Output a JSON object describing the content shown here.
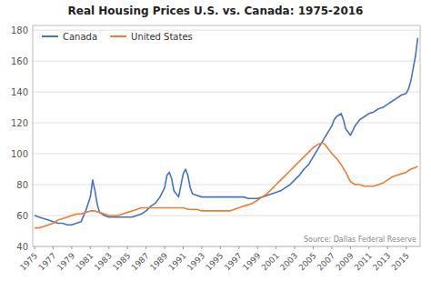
{
  "chart_data": {
    "type": "line",
    "title": "Real Housing Prices U.S. vs. Canada: 1975-2016",
    "annotations": [
      "Source: Dallas Federal Reserve"
    ],
    "xlim": [
      1974.8,
      2016.5
    ],
    "xticks": [
      1975,
      1977,
      1979,
      1981,
      1983,
      1985,
      1987,
      1989,
      1991,
      1993,
      1995,
      1997,
      1999,
      2001,
      2003,
      2005,
      2007,
      2009,
      2011,
      2013,
      2015
    ],
    "ylim": [
      40,
      183
    ],
    "yticks": [
      40,
      60,
      80,
      100,
      120,
      140,
      160,
      180
    ],
    "grid": true,
    "legend": "upper left",
    "series": [
      {
        "name": "Canada",
        "color": "#4472C4",
        "x": [
          1975,
          1975.5,
          1976,
          1976.5,
          1977,
          1977.5,
          1978,
          1978.5,
          1979,
          1979.5,
          1980,
          1980.5,
          1981,
          1981.25,
          1981.5,
          1981.75,
          1982,
          1982.5,
          1983,
          1983.5,
          1984,
          1984.5,
          1985,
          1985.5,
          1986,
          1986.5,
          1987,
          1987.5,
          1988,
          1988.5,
          1989,
          1989.25,
          1989.5,
          1989.75,
          1990,
          1990.5,
          1991,
          1991.25,
          1991.5,
          1991.75,
          1992,
          1992.5,
          1993,
          1993.5,
          1994,
          1994.5,
          1995,
          1995.5,
          1996,
          1996.5,
          1997,
          1997.5,
          1998,
          1998.5,
          1999,
          1999.5,
          2000,
          2000.5,
          2001,
          2001.5,
          2002,
          2002.5,
          2003,
          2003.5,
          2004,
          2004.5,
          2005,
          2005.5,
          2006,
          2006.5,
          2007,
          2007.25,
          2007.5,
          2008,
          2008.25,
          2008.5,
          2009,
          2009.25,
          2009.5,
          2009.75,
          2010,
          2010.5,
          2011,
          2011.5,
          2012,
          2012.5,
          2013,
          2013.5,
          2014,
          2014.5,
          2015,
          2015.25,
          2015.5,
          2015.75,
          2016,
          2016.25
        ],
        "values": [
          60,
          59,
          58,
          57,
          56,
          55,
          55,
          54,
          54,
          55,
          56,
          63,
          72,
          83,
          76,
          67,
          62,
          60,
          59,
          59,
          59,
          59,
          59,
          59,
          60,
          61,
          63,
          66,
          68,
          72,
          78,
          86,
          88,
          84,
          76,
          72,
          87,
          90,
          86,
          78,
          74,
          73,
          72,
          72,
          72,
          72,
          72,
          72,
          72,
          72,
          72,
          72,
          71,
          71,
          71,
          72,
          73,
          74,
          75,
          76,
          78,
          80,
          83,
          86,
          90,
          93,
          98,
          103,
          108,
          113,
          118,
          122,
          124,
          126,
          122,
          116,
          112,
          115,
          118,
          120,
          122,
          124,
          126,
          127,
          129,
          130,
          132,
          134,
          136,
          138,
          139,
          142,
          147,
          155,
          163,
          175
        ]
      },
      {
        "name": "United States",
        "color": "#ED7D31",
        "x": [
          1975,
          1975.5,
          1976,
          1976.5,
          1977,
          1977.5,
          1978,
          1978.5,
          1979,
          1979.5,
          1980,
          1980.5,
          1981,
          1981.5,
          1982,
          1982.5,
          1983,
          1983.5,
          1984,
          1984.5,
          1985,
          1985.5,
          1986,
          1986.5,
          1987,
          1987.5,
          1988,
          1988.5,
          1989,
          1989.5,
          1990,
          1990.5,
          1991,
          1991.5,
          1992,
          1992.5,
          1993,
          1993.5,
          1994,
          1994.5,
          1995,
          1995.5,
          1996,
          1996.5,
          1997,
          1997.5,
          1998,
          1998.5,
          1999,
          1999.5,
          2000,
          2000.5,
          2001,
          2001.5,
          2002,
          2002.5,
          2003,
          2003.5,
          2004,
          2004.5,
          2005,
          2005.5,
          2006,
          2006.25,
          2006.5,
          2006.75,
          2007,
          2007.5,
          2008,
          2008.5,
          2009,
          2009.5,
          2010,
          2010.5,
          2011,
          2011.5,
          2012,
          2012.5,
          2013,
          2013.5,
          2014,
          2014.5,
          2015,
          2015.5,
          2016,
          2016.25
        ],
        "values": [
          52,
          52,
          53,
          54,
          55,
          57,
          58,
          59,
          60,
          61,
          61,
          62,
          63,
          63,
          62,
          61,
          60,
          60,
          60,
          61,
          62,
          63,
          64,
          65,
          65,
          65,
          65,
          65,
          65,
          65,
          65,
          65,
          65,
          64,
          64,
          64,
          63,
          63,
          63,
          63,
          63,
          63,
          63,
          64,
          65,
          66,
          67,
          68,
          70,
          72,
          74,
          77,
          80,
          83,
          86,
          89,
          92,
          95,
          98,
          101,
          104,
          106,
          107,
          106,
          104,
          102,
          100,
          97,
          93,
          88,
          82,
          80,
          80,
          79,
          79,
          79,
          80,
          81,
          83,
          85,
          86,
          87,
          88,
          90,
          91,
          92
        ]
      }
    ]
  }
}
